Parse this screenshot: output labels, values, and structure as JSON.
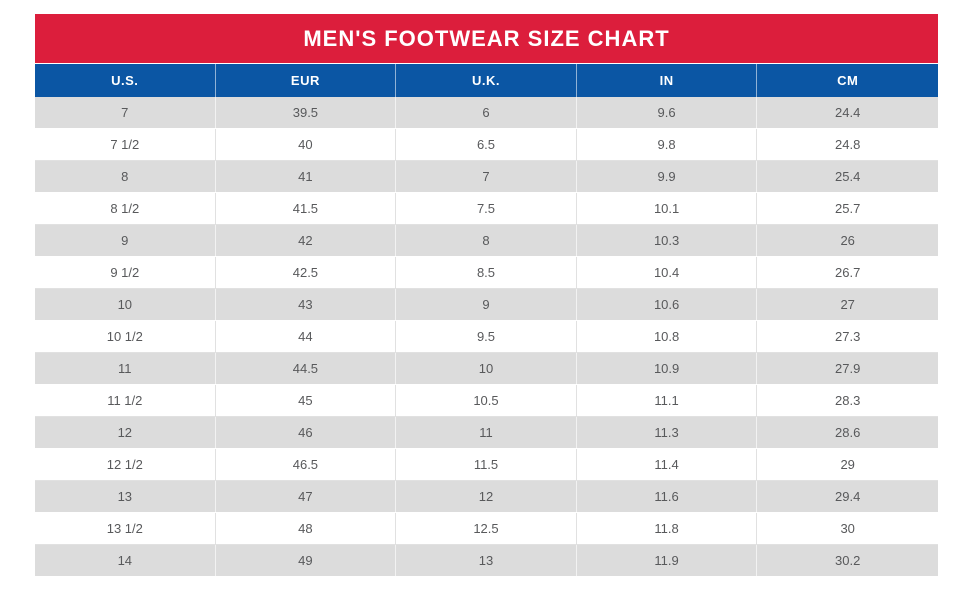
{
  "page": {
    "background": "#ffffff"
  },
  "colors": {
    "title_bar": "#DC1E3C",
    "header_bar": "#0B56A4",
    "row_alt_gray": "#DCDCDC",
    "row_white": "#FFFFFF",
    "header_text": "#FFFFFF",
    "cell_text": "#58595B"
  },
  "chart_data": {
    "type": "table",
    "title": "MEN'S FOOTWEAR SIZE CHART",
    "columns": [
      "U.S.",
      "EUR",
      "U.K.",
      "IN",
      "CM"
    ],
    "rows": [
      [
        "7",
        "39.5",
        "6",
        "9.6",
        "24.4"
      ],
      [
        "7 1/2",
        "40",
        "6.5",
        "9.8",
        "24.8"
      ],
      [
        "8",
        "41",
        "7",
        "9.9",
        "25.4"
      ],
      [
        "8 1/2",
        "41.5",
        "7.5",
        "10.1",
        "25.7"
      ],
      [
        "9",
        "42",
        "8",
        "10.3",
        "26"
      ],
      [
        "9 1/2",
        "42.5",
        "8.5",
        "10.4",
        "26.7"
      ],
      [
        "10",
        "43",
        "9",
        "10.6",
        "27"
      ],
      [
        "10 1/2",
        "44",
        "9.5",
        "10.8",
        "27.3"
      ],
      [
        "11",
        "44.5",
        "10",
        "10.9",
        "27.9"
      ],
      [
        "11 1/2",
        "45",
        "10.5",
        "11.1",
        "28.3"
      ],
      [
        "12",
        "46",
        "11",
        "11.3",
        "28.6"
      ],
      [
        "12 1/2",
        "46.5",
        "11.5",
        "11.4",
        "29"
      ],
      [
        "13",
        "47",
        "12",
        "11.6",
        "29.4"
      ],
      [
        "13 1/2",
        "48",
        "12.5",
        "11.8",
        "30"
      ],
      [
        "14",
        "49",
        "13",
        "11.9",
        "30.2"
      ]
    ],
    "layout": {
      "alternating_rows": true,
      "first_data_row_shade": "gray",
      "columns_equal_width": true
    }
  }
}
